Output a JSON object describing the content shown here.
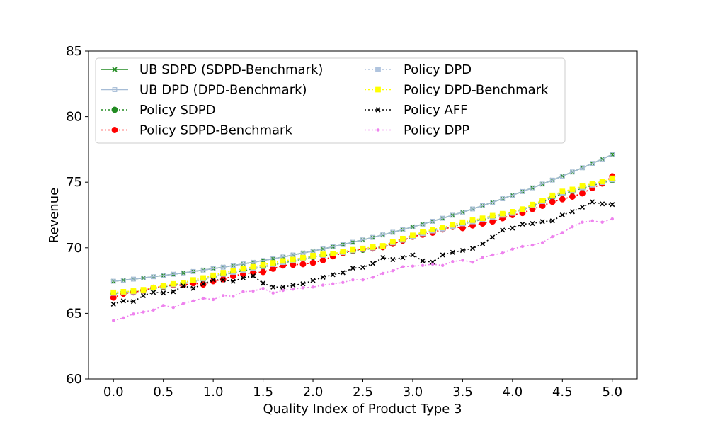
{
  "chart_data": {
    "type": "line",
    "xlabel": "Quality Index of Product Type 3",
    "ylabel": "Revenue",
    "xlim": [
      -0.25,
      5.25
    ],
    "ylim": [
      60,
      85
    ],
    "xticks": [
      0.0,
      0.5,
      1.0,
      1.5,
      2.0,
      2.5,
      3.0,
      3.5,
      4.0,
      4.5,
      5.0
    ],
    "xtick_labels": [
      "0.0",
      "0.5",
      "1.0",
      "1.5",
      "2.0",
      "2.5",
      "3.0",
      "3.5",
      "4.0",
      "4.5",
      "5.0"
    ],
    "yticks": [
      60,
      65,
      70,
      75,
      80,
      85
    ],
    "ytick_labels": [
      "60",
      "65",
      "70",
      "75",
      "80",
      "85"
    ],
    "grid": false,
    "legend_placement": "upper-left",
    "x": [
      0.0,
      0.1,
      0.2,
      0.3,
      0.4,
      0.5,
      0.6,
      0.7,
      0.8,
      0.9,
      1.0,
      1.1,
      1.2,
      1.3,
      1.4,
      1.5,
      1.6,
      1.7,
      1.8,
      1.9,
      2.0,
      2.1,
      2.2,
      2.3,
      2.4,
      2.5,
      2.6,
      2.7,
      2.8,
      2.9,
      3.0,
      3.1,
      3.2,
      3.3,
      3.4,
      3.5,
      3.6,
      3.7,
      3.8,
      3.9,
      4.0,
      4.1,
      4.2,
      4.3,
      4.4,
      4.5,
      4.6,
      4.7,
      4.8,
      4.9,
      5.0
    ],
    "series": [
      {
        "name": "UB SDPD (SDPD-Benchmark)",
        "color": "#228b22",
        "linestyle": "solid",
        "marker": "x",
        "values": [
          67.45,
          67.53,
          67.61,
          67.7,
          67.79,
          67.89,
          67.98,
          68.08,
          68.19,
          68.3,
          68.41,
          68.52,
          68.64,
          68.77,
          68.89,
          69.03,
          69.16,
          69.3,
          69.45,
          69.6,
          69.75,
          69.91,
          70.08,
          70.25,
          70.42,
          70.6,
          70.79,
          70.98,
          71.18,
          71.38,
          71.59,
          71.8,
          72.02,
          72.25,
          72.48,
          72.72,
          72.96,
          73.21,
          73.47,
          73.74,
          74.01,
          74.29,
          74.57,
          74.86,
          75.16,
          75.47,
          75.78,
          76.1,
          76.43,
          76.77,
          77.11
        ]
      },
      {
        "name": "UB DPD (DPD-Benchmark)",
        "color": "#a6bcd6",
        "linestyle": "solid",
        "marker": "square-open",
        "values": [
          67.45,
          67.53,
          67.61,
          67.7,
          67.79,
          67.89,
          67.98,
          68.08,
          68.19,
          68.3,
          68.41,
          68.52,
          68.64,
          68.77,
          68.89,
          69.03,
          69.16,
          69.3,
          69.45,
          69.6,
          69.75,
          69.91,
          70.08,
          70.25,
          70.42,
          70.6,
          70.79,
          70.98,
          71.18,
          71.38,
          71.59,
          71.8,
          72.02,
          72.25,
          72.48,
          72.72,
          72.96,
          73.21,
          73.47,
          73.74,
          74.01,
          74.29,
          74.57,
          74.86,
          75.16,
          75.47,
          75.78,
          76.1,
          76.43,
          76.77,
          77.11
        ]
      },
      {
        "name": "Policy SDPD",
        "color": "#228b22",
        "linestyle": "dotted",
        "marker": "circle",
        "values": [
          66.5,
          66.6,
          66.65,
          66.75,
          66.9,
          67.0,
          67.15,
          67.3,
          67.45,
          67.6,
          67.8,
          67.95,
          68.1,
          68.25,
          68.4,
          68.55,
          68.7,
          68.85,
          69.0,
          69.15,
          69.3,
          69.4,
          69.5,
          69.6,
          69.75,
          69.85,
          69.95,
          70.05,
          70.3,
          70.55,
          70.85,
          71.1,
          71.3,
          71.45,
          71.6,
          71.8,
          72.0,
          72.15,
          72.35,
          72.5,
          72.65,
          72.9,
          73.2,
          73.5,
          73.85,
          74.1,
          74.3,
          74.55,
          74.75,
          74.95,
          75.15
        ]
      },
      {
        "name": "Policy SDPD-Benchmark",
        "color": "#ff0000",
        "linestyle": "dotted",
        "marker": "circle",
        "values": [
          66.2,
          66.5,
          66.6,
          66.75,
          66.95,
          67.05,
          67.15,
          67.15,
          67.3,
          67.2,
          67.45,
          67.6,
          67.85,
          68.0,
          68.1,
          68.15,
          68.4,
          68.65,
          68.7,
          68.75,
          68.85,
          69.05,
          69.35,
          69.6,
          69.8,
          69.9,
          69.95,
          70.05,
          70.3,
          70.55,
          70.85,
          71.0,
          71.15,
          71.4,
          71.6,
          71.5,
          71.7,
          71.85,
          72.0,
          72.25,
          72.5,
          72.65,
          72.95,
          73.2,
          73.5,
          73.7,
          73.9,
          74.15,
          74.55,
          74.9,
          75.45
        ]
      },
      {
        "name": "Policy DPD",
        "color": "#b0c4de",
        "linestyle": "dotted",
        "marker": "square",
        "values": [
          66.55,
          66.6,
          66.65,
          66.75,
          66.9,
          67.05,
          67.2,
          67.3,
          67.5,
          67.65,
          67.85,
          68.0,
          68.15,
          68.3,
          68.45,
          68.6,
          68.75,
          68.9,
          69.05,
          69.2,
          69.35,
          69.45,
          69.55,
          69.65,
          69.8,
          69.9,
          70.0,
          70.1,
          70.4,
          70.6,
          70.9,
          71.1,
          71.3,
          71.45,
          71.65,
          71.85,
          72.0,
          72.2,
          72.35,
          72.5,
          72.65,
          72.9,
          73.25,
          73.55,
          73.95,
          74.2,
          74.35,
          74.6,
          74.8,
          75.0,
          75.2
        ]
      },
      {
        "name": "Policy DPD-Benchmark",
        "color": "#ffff00",
        "linestyle": "dotted",
        "marker": "square",
        "values": [
          66.6,
          66.65,
          66.7,
          66.8,
          66.95,
          67.1,
          67.25,
          67.35,
          67.55,
          67.7,
          67.9,
          68.1,
          68.25,
          68.4,
          68.55,
          68.7,
          68.85,
          69.0,
          69.1,
          69.25,
          69.4,
          69.5,
          69.55,
          69.7,
          69.85,
          69.95,
          70.05,
          70.15,
          70.45,
          70.7,
          70.95,
          71.2,
          71.4,
          71.55,
          71.75,
          71.95,
          72.1,
          72.25,
          72.45,
          72.6,
          72.75,
          72.95,
          73.3,
          73.6,
          74.0,
          74.3,
          74.45,
          74.7,
          74.9,
          75.05,
          75.3
        ]
      },
      {
        "name": "Policy AFF",
        "color": "#000000",
        "linestyle": "dotted",
        "marker": "x",
        "values": [
          65.7,
          65.95,
          65.9,
          66.35,
          66.6,
          66.55,
          66.65,
          67.1,
          66.9,
          67.25,
          67.55,
          67.55,
          67.45,
          67.7,
          67.85,
          67.3,
          67.0,
          67.0,
          67.15,
          67.25,
          67.5,
          67.75,
          67.95,
          68.1,
          68.45,
          68.5,
          68.8,
          69.25,
          69.1,
          69.25,
          69.45,
          69.0,
          68.9,
          69.45,
          69.65,
          69.8,
          69.95,
          70.3,
          70.8,
          71.35,
          71.5,
          71.8,
          71.85,
          72.0,
          72.05,
          72.5,
          72.75,
          73.1,
          73.5,
          73.35,
          73.3
        ]
      },
      {
        "name": "Policy DPP",
        "color": "#ee82ee",
        "linestyle": "dotted",
        "marker": "dot",
        "values": [
          64.45,
          64.65,
          64.95,
          65.1,
          65.25,
          65.6,
          65.45,
          65.75,
          65.95,
          66.15,
          66.05,
          66.35,
          66.3,
          66.65,
          66.7,
          66.9,
          66.55,
          66.75,
          66.85,
          66.95,
          67.0,
          67.15,
          67.25,
          67.35,
          67.55,
          67.55,
          67.75,
          68.05,
          68.25,
          68.55,
          68.6,
          68.65,
          68.75,
          68.65,
          68.95,
          69.05,
          68.9,
          69.25,
          69.45,
          69.6,
          69.9,
          70.1,
          70.2,
          70.4,
          70.85,
          71.15,
          71.6,
          71.95,
          72.05,
          71.95,
          72.2
        ]
      }
    ]
  }
}
